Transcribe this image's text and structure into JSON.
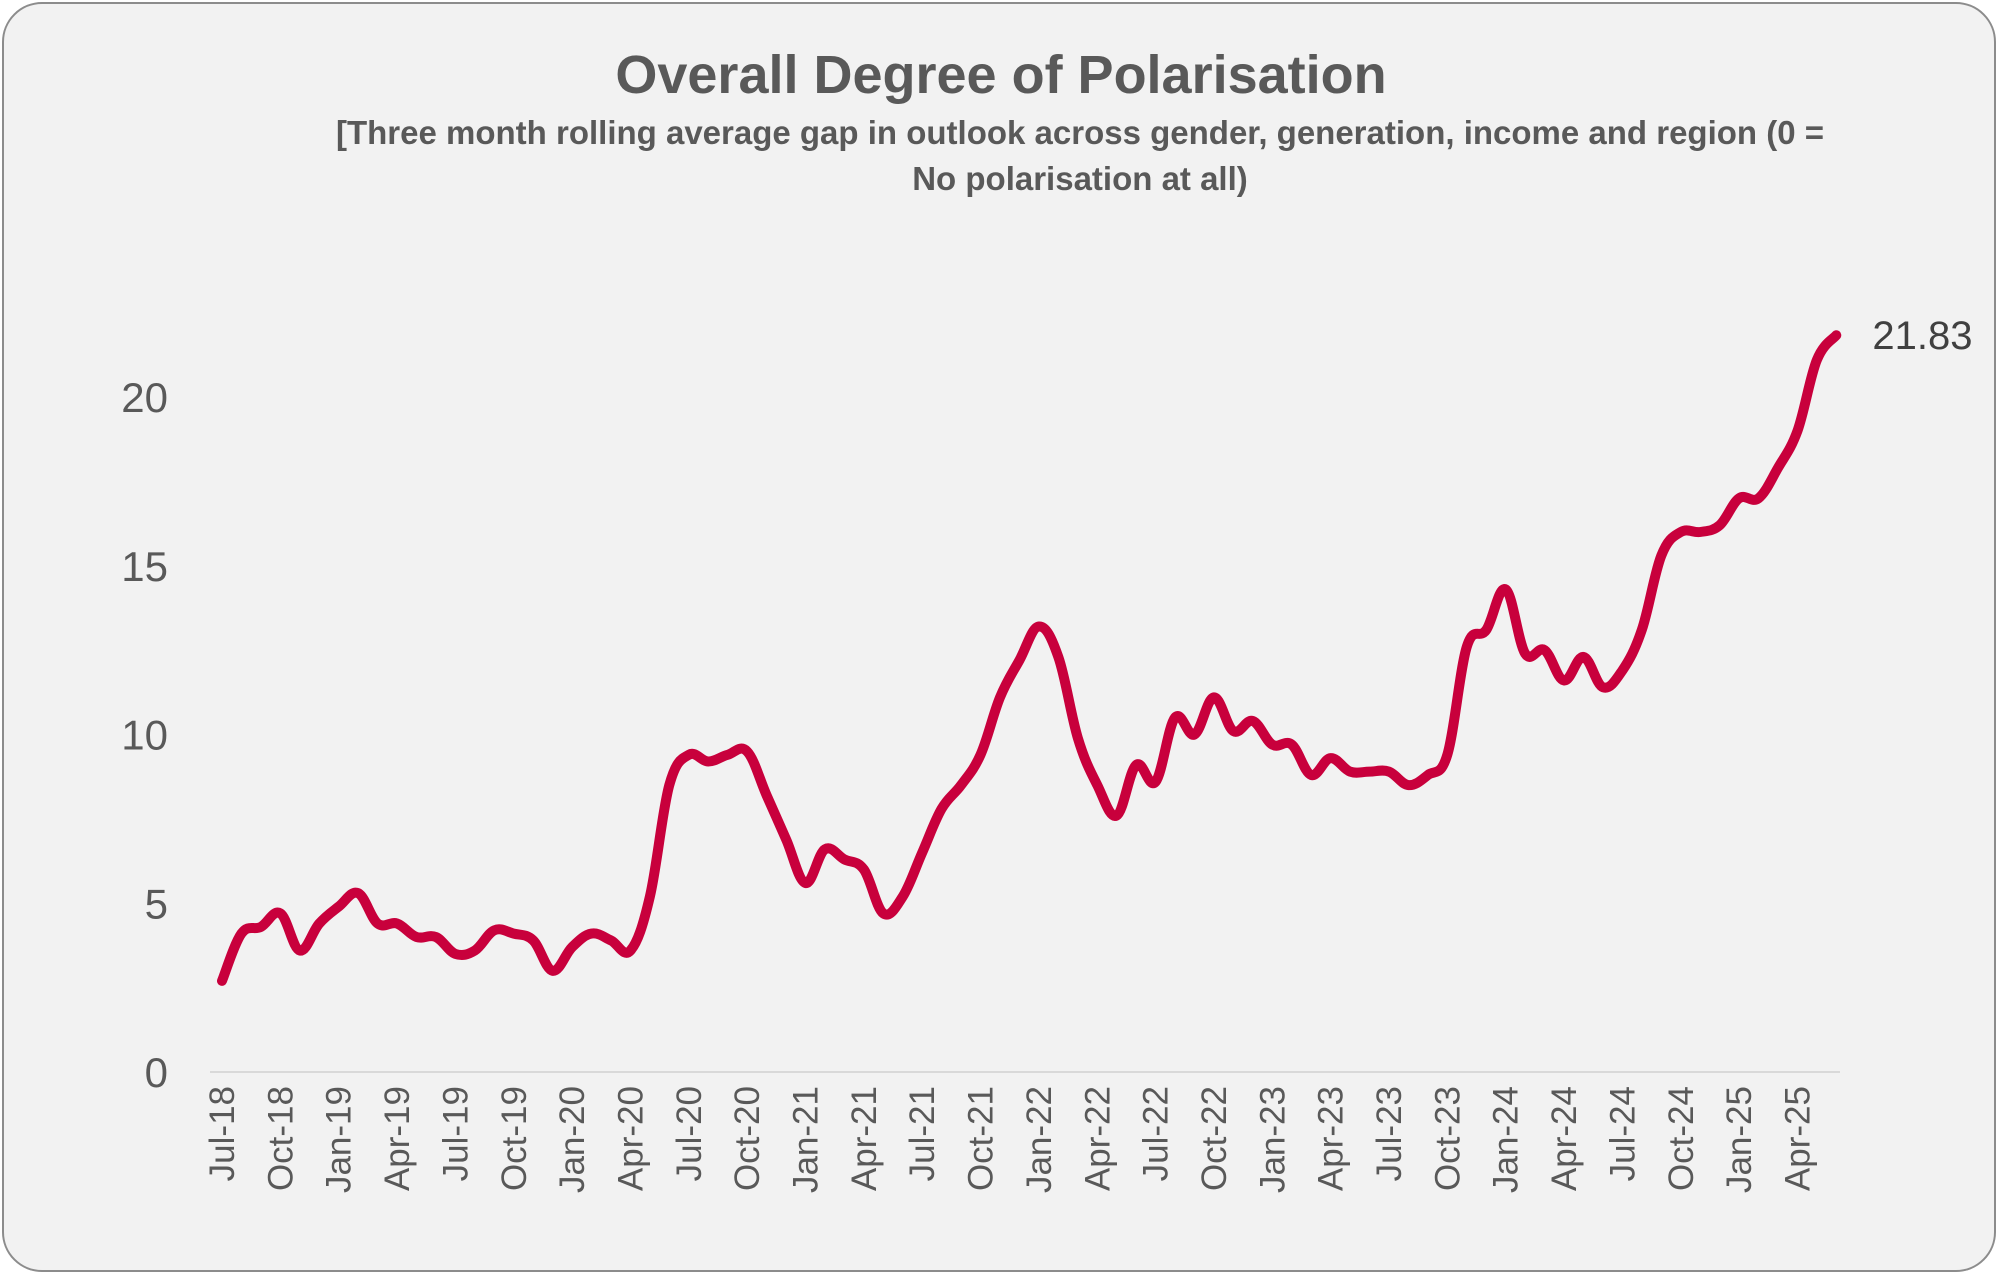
{
  "chart_data": {
    "type": "line",
    "title": "Overall Degree of Polarisation",
    "subtitle": "[Three month rolling average gap in outlook across gender, generation, income and region (0 = No polarisation at all)",
    "xlabel": "",
    "ylabel": "",
    "ylim": [
      0,
      22
    ],
    "y_ticks": [
      0,
      5,
      10,
      15,
      20
    ],
    "y_tick_labels": [
      "0",
      "5",
      "10",
      "15",
      "20"
    ],
    "grid": false,
    "legend": "none",
    "categories": [
      "Jul-18",
      "Aug-18",
      "Sep-18",
      "Oct-18",
      "Nov-18",
      "Dec-18",
      "Jan-19",
      "Feb-19",
      "Mar-19",
      "Apr-19",
      "May-19",
      "Jun-19",
      "Jul-19",
      "Aug-19",
      "Sep-19",
      "Oct-19",
      "Nov-19",
      "Dec-19",
      "Jan-20",
      "Feb-20",
      "Mar-20",
      "Apr-20",
      "May-20",
      "Jun-20",
      "Jul-20",
      "Aug-20",
      "Sep-20",
      "Oct-20",
      "Nov-20",
      "Dec-20",
      "Jan-21",
      "Feb-21",
      "Mar-21",
      "Apr-21",
      "May-21",
      "Jun-21",
      "Jul-21",
      "Aug-21",
      "Sep-21",
      "Oct-21",
      "Nov-21",
      "Dec-21",
      "Jan-22",
      "Feb-22",
      "Mar-22",
      "Apr-22",
      "May-22",
      "Jun-22",
      "Jul-22",
      "Aug-22",
      "Sep-22",
      "Oct-22",
      "Nov-22",
      "Dec-22",
      "Jan-23",
      "Feb-23",
      "Mar-23",
      "Apr-23",
      "May-23",
      "Jun-23",
      "Jul-23",
      "Aug-23",
      "Sep-23",
      "Oct-23",
      "Nov-23",
      "Dec-23",
      "Jan-24",
      "Feb-24",
      "Mar-24",
      "Apr-24",
      "May-24",
      "Jun-24",
      "Jul-24",
      "Aug-24",
      "Sep-24",
      "Oct-24",
      "Nov-24",
      "Dec-24",
      "Jan-25",
      "Feb-25",
      "Mar-25",
      "Apr-25",
      "May-25",
      "Jun-25"
    ],
    "x_tick_labels": [
      "Jul-18",
      "Oct-18",
      "Jan-19",
      "Apr-19",
      "Jul-19",
      "Oct-19",
      "Jan-20",
      "Apr-20",
      "Jul-20",
      "Oct-20",
      "Jan-21",
      "Apr-21",
      "Jul-21",
      "Oct-21",
      "Jan-22",
      "Apr-22",
      "Jul-22",
      "Oct-22",
      "Jan-23",
      "Apr-23",
      "Jul-23",
      "Oct-23",
      "Jan-24",
      "Apr-24",
      "Jul-24",
      "Oct-24",
      "Jan-25",
      "Apr-25"
    ],
    "series": [
      {
        "name": "Overall Degree of Polarisation",
        "color": "#c8003c",
        "values": [
          2.7,
          4.1,
          4.3,
          4.7,
          3.6,
          4.4,
          4.9,
          5.3,
          4.4,
          4.4,
          4.0,
          4.0,
          3.5,
          3.6,
          4.2,
          4.1,
          3.9,
          3.0,
          3.7,
          4.1,
          3.9,
          3.6,
          5.2,
          8.5,
          9.4,
          9.2,
          9.4,
          9.5,
          8.2,
          6.9,
          5.6,
          6.6,
          6.3,
          6.0,
          4.7,
          5.2,
          6.5,
          7.8,
          8.5,
          9.4,
          11.1,
          12.2,
          13.2,
          12.3,
          9.9,
          8.5,
          7.6,
          9.1,
          8.6,
          10.5,
          10.0,
          11.1,
          10.1,
          10.4,
          9.7,
          9.7,
          8.8,
          9.3,
          8.9,
          8.9,
          8.9,
          8.5,
          8.8,
          9.4,
          12.6,
          13.1,
          14.3,
          12.4,
          12.5,
          11.6,
          12.3,
          11.4,
          11.9,
          13.1,
          15.3,
          16.0,
          16.0,
          16.2,
          17.0,
          17.0,
          17.9,
          19.0,
          21.1,
          21.83
        ]
      }
    ],
    "end_label": "21.83"
  }
}
